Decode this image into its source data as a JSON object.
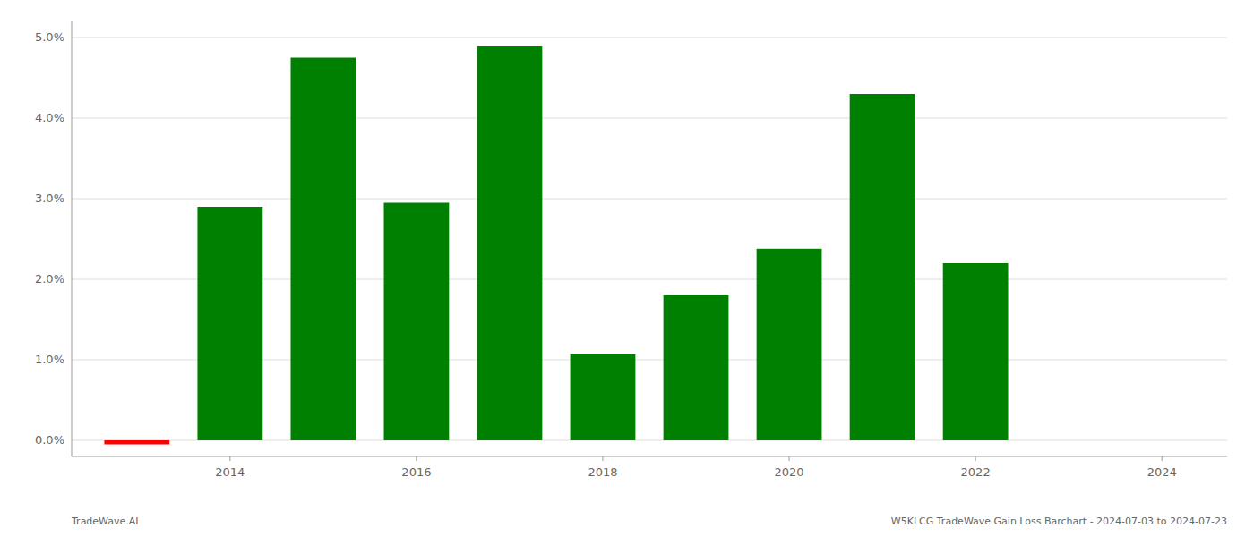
{
  "chart_data": {
    "type": "bar",
    "x": [
      2013,
      2014,
      2015,
      2016,
      2017,
      2018,
      2019,
      2020,
      2021,
      2022,
      2023
    ],
    "values": [
      -0.0005,
      0.029,
      0.0475,
      0.0295,
      0.049,
      0.0107,
      0.018,
      0.0238,
      0.043,
      0.022,
      0.0
    ],
    "colors": [
      "#ff0000",
      "#008000",
      "#008000",
      "#008000",
      "#008000",
      "#008000",
      "#008000",
      "#008000",
      "#008000",
      "#008000",
      "#008000"
    ],
    "xlim": [
      2012.3,
      2024.7
    ],
    "xticks": [
      2014,
      2016,
      2018,
      2020,
      2022,
      2024
    ],
    "ylim": [
      -0.002,
      0.052
    ],
    "yticks": [
      {
        "value": 0.0,
        "label": "0.0%"
      },
      {
        "value": 0.01,
        "label": "1.0%"
      },
      {
        "value": 0.02,
        "label": "2.0%"
      },
      {
        "value": 0.03,
        "label": "3.0%"
      },
      {
        "value": 0.04,
        "label": "4.0%"
      },
      {
        "value": 0.05,
        "label": "5.0%"
      }
    ],
    "grid": true,
    "annotations": [
      "TradeWave.AI",
      "W5KLCG TradeWave Gain Loss Barchart - 2024-07-03 to 2024-07-23"
    ]
  }
}
